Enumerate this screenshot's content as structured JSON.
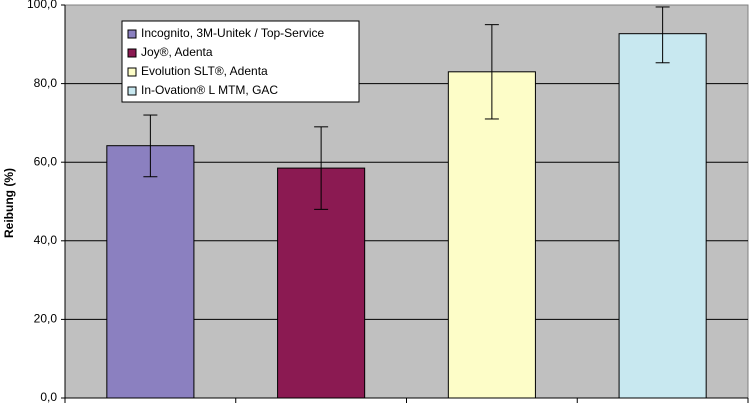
{
  "chart_data": {
    "type": "bar",
    "title": "",
    "xlabel": "",
    "ylabel": "Reibung (%)",
    "ylim": [
      0,
      100
    ],
    "yticks": [
      "0,0",
      "20,0",
      "40,0",
      "60,0",
      "80,0",
      "100,0"
    ],
    "grid": true,
    "legend_position": "top-left",
    "plot_background": "#c0c0c0",
    "series": [
      {
        "name": "Incognito, 3M-Unitek / Top-Service",
        "value": 64.2,
        "error_low": 56.3,
        "error_high": 72.0,
        "color": "#8b80c0"
      },
      {
        "name": "Joy®, Adenta",
        "value": 58.5,
        "error_low": 48.0,
        "error_high": 69.0,
        "color": "#8b1a52"
      },
      {
        "name": "Evolution SLT®, Adenta",
        "value": 83.0,
        "error_low": 71.0,
        "error_high": 95.0,
        "color": "#fdfdc8"
      },
      {
        "name": "In-Ovation® L MTM, GAC",
        "value": 92.7,
        "error_low": 85.3,
        "error_high": 99.5,
        "color": "#c8e8f0"
      }
    ]
  }
}
